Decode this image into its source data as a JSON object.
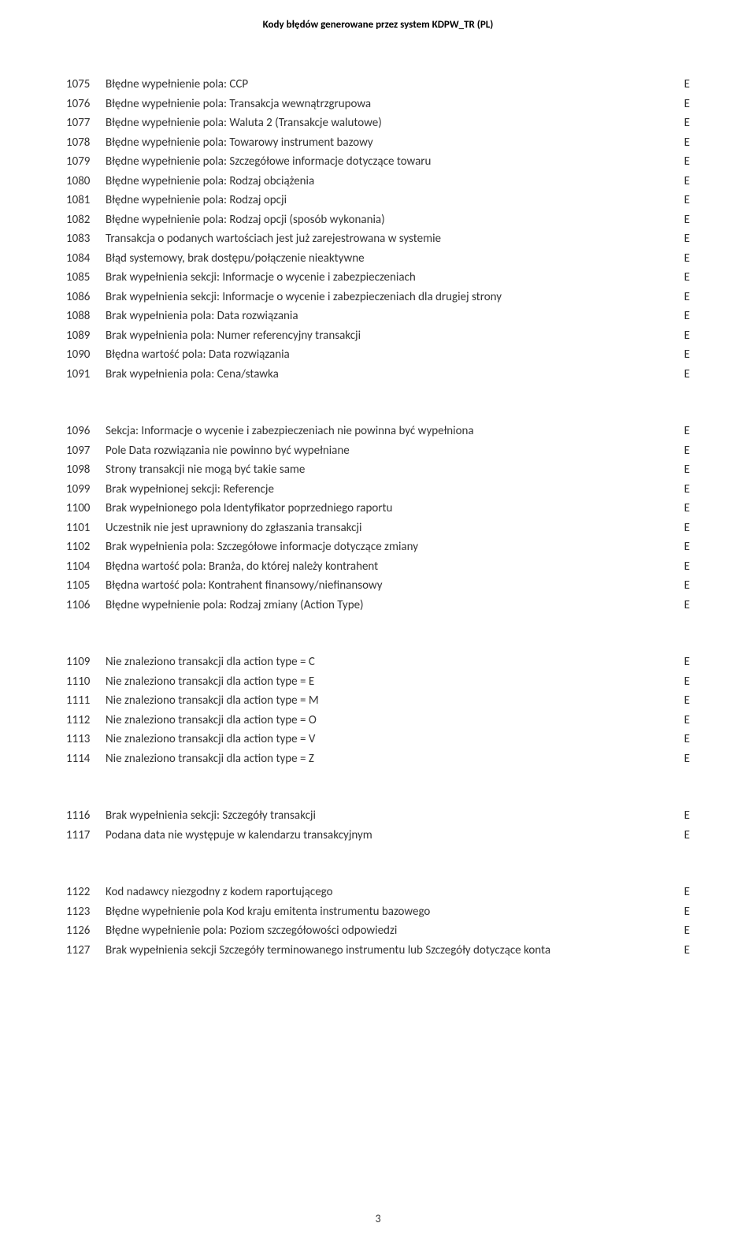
{
  "header_title": "Kody błędów generowane przez system KDPW_TR (PL)",
  "page_number": "3",
  "groups": [
    {
      "rows": [
        {
          "code": "1075",
          "desc": "Błędne wypełnienie pola: CCP",
          "flag": "E"
        },
        {
          "code": "1076",
          "desc": "Błędne wypełnienie pola: Transakcja wewnątrzgrupowa",
          "flag": "E"
        },
        {
          "code": "1077",
          "desc": "Błędne wypełnienie pola: Waluta 2 (Transakcje walutowe)",
          "flag": "E"
        },
        {
          "code": "1078",
          "desc": "Błędne wypełnienie pola: Towarowy instrument bazowy",
          "flag": "E"
        },
        {
          "code": "1079",
          "desc": "Błędne wypełnienie pola: Szczegółowe informacje dotyczące towaru",
          "flag": "E"
        },
        {
          "code": "1080",
          "desc": "Błędne wypełnienie pola: Rodzaj obciążenia",
          "flag": "E"
        },
        {
          "code": "1081",
          "desc": "Błędne wypełnienie pola: Rodzaj opcji",
          "flag": "E"
        },
        {
          "code": "1082",
          "desc": "Błędne wypełnienie pola: Rodzaj opcji (sposób wykonania)",
          "flag": "E"
        },
        {
          "code": "1083",
          "desc": "Transakcja o podanych wartościach jest już zarejestrowana w systemie",
          "flag": "E"
        },
        {
          "code": "1084",
          "desc": "Błąd systemowy, brak dostępu/połączenie nieaktywne",
          "flag": "E"
        },
        {
          "code": "1085",
          "desc": "Brak wypełnienia sekcji: Informacje o wycenie i zabezpieczeniach",
          "flag": "E"
        },
        {
          "code": "1086",
          "desc": "Brak wypełnienia sekcji: Informacje o wycenie i zabezpieczeniach dla drugiej strony",
          "flag": "E"
        },
        {
          "code": "1088",
          "desc": "Brak wypełnienia pola: Data rozwiązania",
          "flag": "E"
        },
        {
          "code": "1089",
          "desc": "Brak wypełnienia pola: Numer referencyjny transakcji",
          "flag": "E"
        },
        {
          "code": "1090",
          "desc": "Błędna wartość pola: Data rozwiązania",
          "flag": "E"
        },
        {
          "code": "1091",
          "desc": "Brak wypełnienia pola: Cena/stawka",
          "flag": "E"
        }
      ]
    },
    {
      "rows": [
        {
          "code": "1096",
          "desc": "Sekcja: Informacje o wycenie i zabezpieczeniach nie powinna być wypełniona",
          "flag": "E"
        },
        {
          "code": "1097",
          "desc": "Pole Data rozwiązania nie powinno być wypełniane",
          "flag": "E"
        },
        {
          "code": "1098",
          "desc": "Strony transakcji nie mogą być takie same",
          "flag": "E"
        },
        {
          "code": "1099",
          "desc": "Brak wypełnionej sekcji: Referencje",
          "flag": "E"
        },
        {
          "code": "1100",
          "desc": "Brak wypełnionego pola Identyfikator poprzedniego raportu",
          "flag": "E"
        },
        {
          "code": "1101",
          "desc": "Uczestnik nie jest uprawniony do zgłaszania transakcji",
          "flag": "E"
        },
        {
          "code": "1102",
          "desc": "Brak wypełnienia pola: Szczegółowe informacje dotyczące zmiany",
          "flag": "E"
        },
        {
          "code": "1104",
          "desc": "Błędna wartość pola: Branża, do której należy kontrahent",
          "flag": "E"
        },
        {
          "code": "1105",
          "desc": "Błędna wartość pola: Kontrahent finansowy/niefinansowy",
          "flag": "E"
        },
        {
          "code": "1106",
          "desc": "Błędne wypełnienie pola: Rodzaj zmiany (Action Type)",
          "flag": "E"
        }
      ]
    },
    {
      "rows": [
        {
          "code": "1109",
          "desc": "Nie znaleziono transakcji dla action type = C",
          "flag": "E"
        },
        {
          "code": "1110",
          "desc": "Nie znaleziono transakcji dla action type = E",
          "flag": "E"
        },
        {
          "code": "1111",
          "desc": "Nie znaleziono transakcji dla action type = M",
          "flag": "E"
        },
        {
          "code": "1112",
          "desc": "Nie znaleziono transakcji dla action type = O",
          "flag": "E"
        },
        {
          "code": "1113",
          "desc": "Nie znaleziono transakcji dla action type = V",
          "flag": "E"
        },
        {
          "code": "1114",
          "desc": "Nie znaleziono transakcji dla action type = Z",
          "flag": "E"
        }
      ]
    },
    {
      "rows": [
        {
          "code": "1116",
          "desc": "Brak wypełnienia sekcji: Szczegóły transakcji",
          "flag": "E"
        },
        {
          "code": "1117",
          "desc": "Podana data nie występuje w kalendarzu transakcyjnym",
          "flag": "E"
        }
      ]
    },
    {
      "rows": [
        {
          "code": "1122",
          "desc": "Kod nadawcy niezgodny z kodem raportującego",
          "flag": "E"
        },
        {
          "code": "1123",
          "desc": "Błędne wypełnienie pola Kod kraju emitenta instrumentu bazowego",
          "flag": "E"
        },
        {
          "code": "1126",
          "desc": "Błędne wypełnienie pola: Poziom szczegółowości odpowiedzi",
          "flag": "E"
        },
        {
          "code": "1127",
          "desc": "Brak wypełnienia sekcji Szczegóły terminowanego instrumentu lub Szczegóły dotyczące konta",
          "flag": "E"
        }
      ]
    }
  ]
}
